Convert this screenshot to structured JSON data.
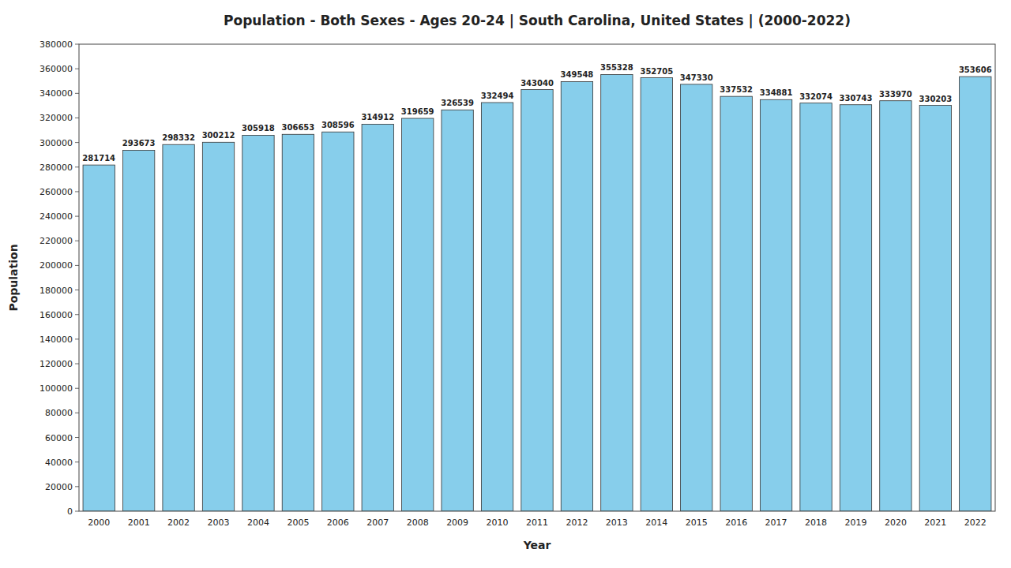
{
  "chart_data": {
    "type": "bar",
    "title": "Population - Both Sexes - Ages 20-24 | South Carolina, United States |  (2000-2022)",
    "x_label": "Year",
    "y_label": "Population",
    "categories": [
      "2000",
      "2001",
      "2002",
      "2003",
      "2004",
      "2005",
      "2006",
      "2007",
      "2008",
      "2009",
      "2010",
      "2011",
      "2012",
      "2013",
      "2014",
      "2015",
      "2016",
      "2017",
      "2018",
      "2019",
      "2020",
      "2021",
      "2022"
    ],
    "values": [
      281714,
      293673,
      298332,
      300212,
      305918,
      306653,
      308596,
      314912,
      319659,
      326539,
      332494,
      343040,
      349548,
      355328,
      352705,
      347330,
      337532,
      334881,
      332074,
      330743,
      333970,
      330203,
      353606
    ],
    "color": "#87ceeb",
    "ylim": [
      0,
      380000
    ],
    "yticks": [
      0,
      20000,
      40000,
      60000,
      80000,
      100000,
      120000,
      140000,
      160000,
      180000,
      200000,
      220000,
      240000,
      260000,
      280000,
      300000,
      320000,
      340000,
      360000,
      380000
    ],
    "grid": false,
    "data_labels": true
  }
}
